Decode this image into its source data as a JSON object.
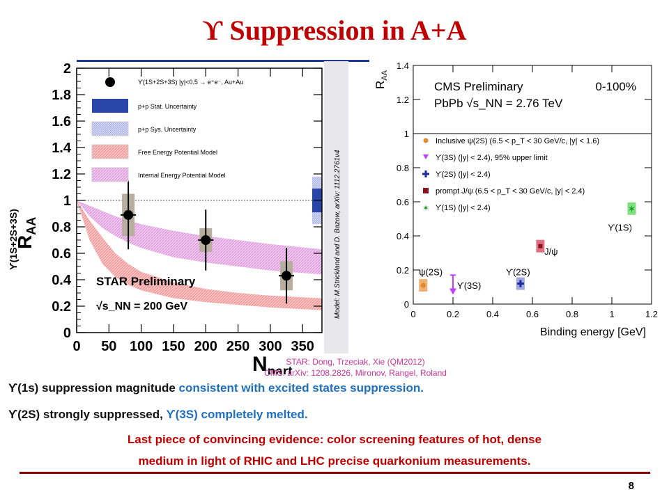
{
  "slide": {
    "title": "ϒ Suppression in A+A",
    "page_number": "8",
    "credits": [
      "STAR: Dong, Trzeciak, Xie (QM2012)",
      "CMS: arXiv: 1208.2826, Mironov, Rangel, Roland"
    ],
    "bullets": [
      {
        "black": "ϒ(1s) suppression magnitude ",
        "blue": "consistent with excited states suppression."
      },
      {
        "black": "ϒ(2S) strongly suppressed, ",
        "blue": "ϒ(3S) completely melted."
      }
    ],
    "conclusion": [
      "Last piece of convincing evidence: color screening features of hot, dense",
      "medium in light of RHIC and LHC precise quarkonium measurements."
    ],
    "colors": {
      "title": "#c00000",
      "blue_text": "#1f6fc0",
      "credits": "#cc3399",
      "rule": "#8b0000"
    }
  },
  "chart_data": [
    {
      "type": "scatter",
      "xlabel": "N_part",
      "ylabel": "R_AA ϒ(1S+2S+3S)",
      "xlim": [
        0,
        380
      ],
      "ylim": [
        0,
        2
      ],
      "xticks": [
        0,
        50,
        100,
        150,
        200,
        250,
        300,
        350
      ],
      "xtick_labels": [
        "0",
        "50",
        "100",
        "150",
        "200",
        "250",
        "300",
        "350"
      ],
      "yticks": [
        0,
        0.2,
        0.4,
        0.6,
        0.8,
        1,
        1.2,
        1.4,
        1.6,
        1.8,
        2
      ],
      "ytick_labels": [
        "0",
        "0.2",
        "0.4",
        "0.6",
        "0.8",
        "1",
        "1.2",
        "1.4",
        "1.6",
        "1.8",
        "2"
      ],
      "legend": [
        "ϒ(1S+2S+3S) |y|<0.5 → e⁺e⁻, Au+Au",
        "p+p Stat. Uncertainty",
        "p+p Sys. Uncertainty",
        "Free Energy Potential Model",
        "Internal Energy Potential Model"
      ],
      "series": [
        {
          "name": "ϒ(1S+2S+3S) |y|<0.5 → e⁺e⁻, Au+Au",
          "x": [
            80,
            200,
            325
          ],
          "y": [
            0.89,
            0.7,
            0.43
          ],
          "stat_err": [
            0.26,
            0.23,
            0.21
          ],
          "sys_err": [
            0.16,
            0.09,
            0.11
          ]
        },
        {
          "name": "Free Energy Potential Model",
          "x": [
            0,
            20,
            40,
            60,
            80,
            100,
            150,
            200,
            250,
            300,
            380
          ],
          "upper": [
            1.0,
            0.85,
            0.72,
            0.6,
            0.52,
            0.46,
            0.38,
            0.33,
            0.3,
            0.28,
            0.26
          ],
          "lower": [
            1.0,
            0.7,
            0.52,
            0.42,
            0.36,
            0.32,
            0.26,
            0.23,
            0.21,
            0.19,
            0.17
          ]
        },
        {
          "name": "Internal Energy Potential Model",
          "x": [
            0,
            20,
            40,
            60,
            80,
            100,
            150,
            200,
            250,
            300,
            380
          ],
          "upper": [
            1.0,
            0.96,
            0.92,
            0.88,
            0.85,
            0.82,
            0.77,
            0.73,
            0.7,
            0.67,
            0.63
          ],
          "lower": [
            1.0,
            0.88,
            0.79,
            0.73,
            0.68,
            0.64,
            0.57,
            0.53,
            0.5,
            0.47,
            0.44
          ]
        }
      ],
      "pp_stat_band": [
        0.91,
        1.09
      ],
      "pp_sys_band": [
        0.82,
        1.18
      ],
      "annotations": [
        "STAR Preliminary",
        "√s_NN = 200 GeV"
      ],
      "side_text": "Model: M.Strickland and D. Bazow, arXiv: 1112.2761v4",
      "reference_line": 1
    },
    {
      "type": "scatter",
      "xlabel": "Binding energy [GeV]",
      "ylabel": "R_AA",
      "xlim": [
        0,
        1.2
      ],
      "ylim": [
        0,
        1.4
      ],
      "xticks": [
        0,
        0.2,
        0.4,
        0.6,
        0.8,
        1,
        1.2
      ],
      "xtick_labels": [
        "0",
        "0.2",
        "0.4",
        "0.6",
        "0.8",
        "1",
        "1.2"
      ],
      "yticks": [
        0,
        0.2,
        0.4,
        0.6,
        0.8,
        1,
        1.2,
        1.4
      ],
      "ytick_labels": [
        "0",
        "0.2",
        "0.4",
        "0.6",
        "0.8",
        "1",
        "1.2",
        "1.4"
      ],
      "header": [
        "CMS Preliminary",
        "0-100%",
        "PbPb √s_NN = 2.76 TeV"
      ],
      "reference_line": 1,
      "legend": [
        {
          "text": "Inclusive ψ(2S) (6.5 < p_T < 30 GeV/c, |y| < 1.6)",
          "color": "#e08a2c",
          "marker": "circle"
        },
        {
          "text": "ϒ(3S) (|y| < 2.4), 95% upper limit",
          "color": "#c040ff",
          "marker": "triangle"
        },
        {
          "text": "ϒ(2S) (|y| < 2.4)",
          "color": "#1a2a9a",
          "marker": "cross"
        },
        {
          "text": "prompt J/ψ (6.5 < p_T < 30 GeV/c, |y| < 2.4)",
          "color": "#8b1020",
          "marker": "square"
        },
        {
          "text": "ϒ(1S) (|y| < 2.4)",
          "color": "#1a9a2a",
          "marker": "star"
        }
      ],
      "points": [
        {
          "label": "ψ(2S)",
          "x": 0.05,
          "y": 0.11,
          "color": "#e08a2c",
          "box": "#f0b070"
        },
        {
          "label": "ϒ(3S)",
          "x": 0.2,
          "y": 0.1,
          "color": "#c040ff",
          "upper_limit": true
        },
        {
          "label": "ϒ(2S)",
          "x": 0.54,
          "y": 0.12,
          "color": "#1a2a9a",
          "box": "#a0a8e0"
        },
        {
          "label": "J/ψ",
          "x": 0.64,
          "y": 0.34,
          "color": "#8b1020",
          "box": "#e07080"
        },
        {
          "label": "ϒ(1S)",
          "x": 1.1,
          "y": 0.56,
          "color": "#1a9a2a",
          "box": "#80e080"
        }
      ]
    }
  ]
}
